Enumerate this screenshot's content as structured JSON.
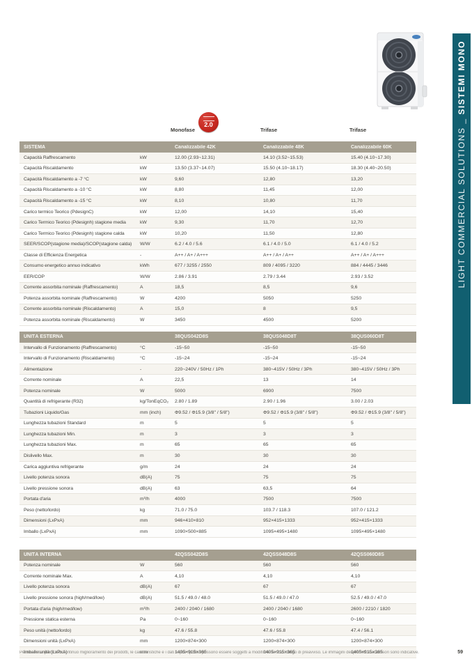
{
  "sidebar": {
    "label_regular": "LIGHT COMMERCIAL SOLUTIONS _ ",
    "label_bold": "SISTEMI MONO",
    "color": "#115f70"
  },
  "phase_header": {
    "monofase": "Monofase",
    "trifase_1": "Trifase",
    "trifase_2": "Trifase",
    "badge_text": "2.0",
    "badge_color": "#c5271f"
  },
  "tables": [
    {
      "title": "SISTEMA",
      "columns": [
        "Canalizzabile 42K",
        "Canalizzabile 48K",
        "Canalizzabile 60K"
      ],
      "rows": [
        {
          "label": "Capacità Raffrescamento",
          "unit": "kW",
          "values": [
            "12.00 (2.93~12.31)",
            "14.10 (3.52~15.53)",
            "15.40 (4.10~17.30)"
          ]
        },
        {
          "label": "Capacità Riscaldamento",
          "unit": "kW",
          "values": [
            "13.50 (3.37~14.07)",
            "15.50 (4.10~18.17)",
            "18.30 (4.40~20.50)"
          ]
        },
        {
          "label": "Capacità Riscaldamento a -7 °C",
          "unit": "kW",
          "values": [
            "9,60",
            "12,80",
            "13,20"
          ]
        },
        {
          "label": "Capacità Riscaldamento a -10 °C",
          "unit": "kW",
          "values": [
            "8,80",
            "11,45",
            "12,00"
          ]
        },
        {
          "label": "Capacità Riscaldamento a -15 °C",
          "unit": "kW",
          "values": [
            "8,10",
            "10,80",
            "11,70"
          ]
        },
        {
          "label": "Carico termico Teorico (PdesignC)",
          "unit": "kW",
          "values": [
            "12,00",
            "14,10",
            "15,40"
          ]
        },
        {
          "label": "Carico Termico Teorico (Pdesignh) stagione media",
          "unit": "kW",
          "values": [
            "9,30",
            "11,70",
            "12,70"
          ]
        },
        {
          "label": "Carico Termico Teorico (Pdesignh) stagione calda",
          "unit": "kW",
          "values": [
            "10,20",
            "11,50",
            "12,80"
          ]
        },
        {
          "label": "SEER/SCOP(stagione media)/SCOP(stagione calda)",
          "unit": "W/W",
          "values": [
            "6.2 / 4.0 / 5.6",
            "6.1 / 4.0 / 5.0",
            "6.1 / 4.0 / 5.2"
          ]
        },
        {
          "label": "Classe di Efficienza Energetica",
          "unit": "-",
          "values": [
            "A++ / A+ / A+++",
            "A++ / A+ / A++",
            "A++ / A+ / A+++"
          ]
        },
        {
          "label": "Consumo energetico annuo indicativo",
          "unit": "kWh",
          "values": [
            "677 / 3255 / 2550",
            "809 / 4095 / 3220",
            "884 / 4445 / 3446"
          ]
        },
        {
          "label": "EER/COP",
          "unit": "W/W",
          "values": [
            "2.86 / 3.91",
            "2.79 / 3.44",
            "2.93 / 3.52"
          ]
        },
        {
          "label": "Corrente assorbita nominale (Raffrescamento)",
          "unit": "A",
          "values": [
            "18,5",
            "8,5",
            "9,6"
          ]
        },
        {
          "label": "Potenza assorbita nominale (Raffrescamento)",
          "unit": "W",
          "values": [
            "4200",
            "5050",
            "5250"
          ]
        },
        {
          "label": "Corrente assorbita nominale (Riscaldamento)",
          "unit": "A",
          "values": [
            "15,0",
            "8",
            "9,5"
          ]
        },
        {
          "label": "Potenza assorbita nominale (Riscaldamento)",
          "unit": "W",
          "values": [
            "3450",
            "4500",
            "5200"
          ]
        }
      ]
    },
    {
      "title": "UNITÀ ESTERNA",
      "columns": [
        "38QUS042D8S",
        "38QUS048D8T",
        "38QUS060D8T"
      ],
      "rows": [
        {
          "label": "Intervallo di Funzionamento (Raffrescamento)",
          "unit": "°C",
          "values": [
            "-15~50",
            "-15~50",
            "-15~50"
          ]
        },
        {
          "label": "Intervallo di Funzionamento (Riscaldamento)",
          "unit": "°C",
          "values": [
            "-15~24",
            "-15~24",
            "-15~24"
          ]
        },
        {
          "label": "Alimentazione",
          "unit": "-",
          "values": [
            "220~240V / 50Hz / 1Ph",
            "380~415V / 50Hz / 3Ph",
            "380~415V / 50Hz / 3Ph"
          ]
        },
        {
          "label": "Corrente nominale",
          "unit": "A",
          "values": [
            "22,5",
            "13",
            "14"
          ]
        },
        {
          "label": "Potenza nominale",
          "unit": "W",
          "values": [
            "5000",
            "6900",
            "7500"
          ]
        },
        {
          "label": "Quantità di refrigerante (R32)",
          "unit": "kg/TonEqCO₂",
          "values": [
            "2.80 / 1.89",
            "2.90 / 1.96",
            "3.00 / 2.03"
          ]
        },
        {
          "label": "Tubazioni Liquido/Gas",
          "unit": "mm (inch)",
          "values": [
            "Φ9.52 / Φ15.9 (3/8\" / 5/8\")",
            "Φ9.52 / Φ15.9 (3/8\" / 5/8\")",
            "Φ9.52 / Φ15.9 (3/8\" / 5/8\")"
          ]
        },
        {
          "label": "Lunghezza tubazioni Standard",
          "unit": "m",
          "values": [
            "5",
            "5",
            "5"
          ]
        },
        {
          "label": "Lunghezza tubazioni Min.",
          "unit": "m",
          "values": [
            "3",
            "3",
            "3"
          ]
        },
        {
          "label": "Lunghezza tubazioni Max.",
          "unit": "m",
          "values": [
            "65",
            "65",
            "65"
          ]
        },
        {
          "label": "Dislivello Max.",
          "unit": "m",
          "values": [
            "30",
            "30",
            "30"
          ]
        },
        {
          "label": "Carica aggiuntiva refrigerante",
          "unit": "g/m",
          "values": [
            "24",
            "24",
            "24"
          ]
        },
        {
          "label": "Livello potenza sonora",
          "unit": "dB(A)",
          "values": [
            "75",
            "75",
            "75"
          ]
        },
        {
          "label": "Livello pressione sonora",
          "unit": "dB(A)",
          "values": [
            "63",
            "63,5",
            "64"
          ]
        },
        {
          "label": "Portata d'aria",
          "unit": "m³/h",
          "values": [
            "4000",
            "7500",
            "7500"
          ]
        },
        {
          "label": "Peso (netto/lordo)",
          "unit": "kg",
          "values": [
            "71.0 / 75.0",
            "103.7 / 118.3",
            "107.0 / 121.2"
          ]
        },
        {
          "label": "Dimensioni (LxPxA)",
          "unit": "mm",
          "values": [
            "946×410×810",
            "952×415×1333",
            "952×415×1333"
          ]
        },
        {
          "label": "Imballo (LxPxA)",
          "unit": "mm",
          "values": [
            "1090×500×885",
            "1095×495×1480",
            "1095×495×1480"
          ]
        }
      ]
    },
    {
      "title": "UNITÀ INTERNA",
      "columns": [
        "42QSS042D8S",
        "42QSS048D8S",
        "42QSS060D8S"
      ],
      "rows": [
        {
          "label": "Potenza nominale",
          "unit": "W",
          "values": [
            "560",
            "560",
            "560"
          ]
        },
        {
          "label": "Corrente nominale Max.",
          "unit": "A",
          "values": [
            "4,10",
            "4,10",
            "4,10"
          ]
        },
        {
          "label": "Livello potenza sonora",
          "unit": "dB(A)",
          "values": [
            "67",
            "67",
            "67"
          ]
        },
        {
          "label": "Livello pressione sonora  (high/med/low)",
          "unit": "dB(A)",
          "values": [
            "51.5 / 49.0 / 48.0",
            "51.5 / 49.0 / 47.0",
            "52.5 / 49.0 / 47.0"
          ]
        },
        {
          "label": "Portata d'aria (high/med/low)",
          "unit": "m³/h",
          "values": [
            "2400 / 2040 / 1680",
            "2400 / 2040 / 1680",
            "2600 / 2210 / 1820"
          ]
        },
        {
          "label": "Pressione statica esterna",
          "unit": "Pa",
          "values": [
            "0~160",
            "0~160",
            "0~160"
          ]
        },
        {
          "label": "Peso unità (netto/lordo)",
          "unit": "kg",
          "values": [
            "47.6 / 55.8",
            "47.6 / 55.8",
            "47.4 / 56.1"
          ]
        },
        {
          "label": "Dimensioni unità (LxPxA)",
          "unit": "mm",
          "values": [
            "1200×874×300",
            "1200×874×300",
            "1200×874×300"
          ]
        },
        {
          "label": "Imballo unità (LxPxA)",
          "unit": "mm",
          "values": [
            "1405×915×365",
            "1405×915×365",
            "1405×915×365"
          ]
        }
      ]
    }
  ],
  "footer": {
    "note": "Per la nostra politica di continuo miglioramento dei prodotti, le caratteristiche e i dati sopra riportati possono essere soggetti a modifiche senza obbligo di preavviso. Le immagini dei prodotti e accessori sono indicative.",
    "page_number": "59"
  },
  "colors": {
    "sidebar_teal": "#115f70",
    "table_band_taupe": "#a59f90",
    "badge_red": "#c5271f"
  }
}
